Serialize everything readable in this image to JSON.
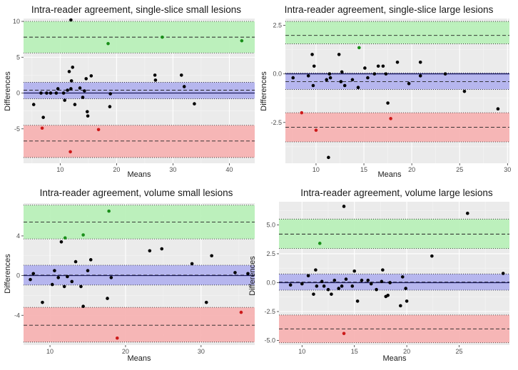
{
  "chart_data": [
    {
      "type": "scatter",
      "title": "Intra-reader agreement, single-slice small lesions",
      "xlabel": "Means",
      "ylabel": "Differences",
      "xlim": [
        3.5,
        44.5
      ],
      "ylim": [
        -9.8,
        10.4
      ],
      "xticks": [
        10,
        20,
        30,
        40
      ],
      "xtick_labels": [
        "10",
        "20",
        "30",
        "40"
      ],
      "yticks": [
        -5,
        0,
        5,
        10
      ],
      "ytick_labels": [
        "-5",
        "0",
        "5",
        "10"
      ],
      "bands": {
        "upper": {
          "low": 5.6,
          "high": 10.0,
          "center": 7.8,
          "color": "#b9f0b9"
        },
        "bias": {
          "low": -0.8,
          "high": 1.5,
          "center": 0.4,
          "color": "#b3b3ee"
        },
        "lower": {
          "low": -9.0,
          "high": -4.5,
          "center": -6.7,
          "color": "#f7b3b3"
        }
      },
      "zero_line": 0,
      "points": [
        {
          "x": 5.3,
          "y": -1.6,
          "c": "black"
        },
        {
          "x": 6.6,
          "y": 0.0,
          "c": "black"
        },
        {
          "x": 7.0,
          "y": -3.4,
          "c": "black"
        },
        {
          "x": 6.8,
          "y": -4.9,
          "c": "red"
        },
        {
          "x": 7.6,
          "y": 0.0,
          "c": "black"
        },
        {
          "x": 8.3,
          "y": 0.0,
          "c": "black"
        },
        {
          "x": 9.3,
          "y": 0.0,
          "c": "black"
        },
        {
          "x": 9.6,
          "y": 0.6,
          "c": "black"
        },
        {
          "x": 10.6,
          "y": 0.0,
          "c": "black"
        },
        {
          "x": 10.8,
          "y": -1.0,
          "c": "black"
        },
        {
          "x": 11.3,
          "y": 0.4,
          "c": "black"
        },
        {
          "x": 11.6,
          "y": 3.0,
          "c": "black"
        },
        {
          "x": 11.9,
          "y": 0.6,
          "c": "black"
        },
        {
          "x": 12.0,
          "y": 1.7,
          "c": "black"
        },
        {
          "x": 12.2,
          "y": 3.6,
          "c": "black"
        },
        {
          "x": 11.9,
          "y": 10.2,
          "c": "black"
        },
        {
          "x": 11.8,
          "y": -8.2,
          "c": "red"
        },
        {
          "x": 12.6,
          "y": -1.6,
          "c": "black"
        },
        {
          "x": 13.5,
          "y": 0.7,
          "c": "black"
        },
        {
          "x": 14.0,
          "y": -0.6,
          "c": "black"
        },
        {
          "x": 14.3,
          "y": 0.3,
          "c": "black"
        },
        {
          "x": 14.6,
          "y": 2.0,
          "c": "black"
        },
        {
          "x": 14.8,
          "y": -2.6,
          "c": "black"
        },
        {
          "x": 14.9,
          "y": -3.2,
          "c": "black"
        },
        {
          "x": 15.5,
          "y": 2.4,
          "c": "black"
        },
        {
          "x": 16.8,
          "y": -5.1,
          "c": "red"
        },
        {
          "x": 18.5,
          "y": 6.9,
          "c": "green"
        },
        {
          "x": 18.8,
          "y": -1.9,
          "c": "black"
        },
        {
          "x": 18.9,
          "y": -0.1,
          "c": "black"
        },
        {
          "x": 26.8,
          "y": 2.5,
          "c": "black"
        },
        {
          "x": 26.9,
          "y": 1.8,
          "c": "black"
        },
        {
          "x": 28.1,
          "y": 7.8,
          "c": "green"
        },
        {
          "x": 31.5,
          "y": 2.5,
          "c": "black"
        },
        {
          "x": 32.0,
          "y": 0.9,
          "c": "black"
        },
        {
          "x": 33.8,
          "y": -1.5,
          "c": "black"
        },
        {
          "x": 42.2,
          "y": 7.3,
          "c": "green"
        }
      ]
    },
    {
      "type": "scatter",
      "title": "Intra-reader agreement, single-slice large lesions",
      "xlabel": "Means",
      "ylabel": "Differences",
      "xlim": [
        6.8,
        30.2
      ],
      "ylim": [
        -4.6,
        2.85
      ],
      "xticks": [
        10,
        15,
        20,
        25,
        30
      ],
      "xtick_labels": [
        "10",
        "15",
        "20",
        "25",
        "30"
      ],
      "yticks": [
        -2.5,
        0.0,
        2.5
      ],
      "ytick_labels": [
        "-2.5",
        "0.0",
        "2.5"
      ],
      "bands": {
        "upper": {
          "low": 1.55,
          "high": 2.7,
          "center": 1.98,
          "color": "#b9f0b9"
        },
        "bias": {
          "low": -0.8,
          "high": 0.05,
          "center": -0.4,
          "color": "#b3b3ee"
        },
        "lower": {
          "low": -3.5,
          "high": -2.0,
          "center": -2.75,
          "color": "#f7b3b3"
        }
      },
      "zero_line": 0,
      "points": [
        {
          "x": 7.6,
          "y": -0.2,
          "c": "black"
        },
        {
          "x": 8.5,
          "y": -2.0,
          "c": "red"
        },
        {
          "x": 9.2,
          "y": -0.1,
          "c": "black"
        },
        {
          "x": 9.6,
          "y": 1.0,
          "c": "black"
        },
        {
          "x": 9.8,
          "y": 0.4,
          "c": "black"
        },
        {
          "x": 9.7,
          "y": -0.6,
          "c": "black"
        },
        {
          "x": 10.0,
          "y": -2.9,
          "c": "red"
        },
        {
          "x": 11.1,
          "y": -0.3,
          "c": "black"
        },
        {
          "x": 11.4,
          "y": 0.0,
          "c": "black"
        },
        {
          "x": 11.5,
          "y": -0.2,
          "c": "black"
        },
        {
          "x": 11.3,
          "y": -4.3,
          "c": "black"
        },
        {
          "x": 12.4,
          "y": 1.0,
          "c": "black"
        },
        {
          "x": 12.6,
          "y": -0.4,
          "c": "black"
        },
        {
          "x": 12.7,
          "y": 0.1,
          "c": "black"
        },
        {
          "x": 13.0,
          "y": -0.6,
          "c": "black"
        },
        {
          "x": 13.8,
          "y": -0.3,
          "c": "black"
        },
        {
          "x": 14.4,
          "y": -0.7,
          "c": "black"
        },
        {
          "x": 14.5,
          "y": 1.35,
          "c": "green"
        },
        {
          "x": 15.1,
          "y": 0.3,
          "c": "black"
        },
        {
          "x": 15.4,
          "y": -0.2,
          "c": "black"
        },
        {
          "x": 16.1,
          "y": 0.0,
          "c": "black"
        },
        {
          "x": 16.5,
          "y": 0.4,
          "c": "black"
        },
        {
          "x": 17.0,
          "y": 0.4,
          "c": "black"
        },
        {
          "x": 17.3,
          "y": 0.0,
          "c": "black"
        },
        {
          "x": 17.5,
          "y": -1.5,
          "c": "black"
        },
        {
          "x": 17.8,
          "y": -2.3,
          "c": "red"
        },
        {
          "x": 18.5,
          "y": 0.6,
          "c": "black"
        },
        {
          "x": 19.7,
          "y": -0.5,
          "c": "black"
        },
        {
          "x": 20.9,
          "y": 0.6,
          "c": "black"
        },
        {
          "x": 20.9,
          "y": -0.1,
          "c": "black"
        },
        {
          "x": 23.5,
          "y": 0.0,
          "c": "black"
        },
        {
          "x": 25.5,
          "y": -0.9,
          "c": "black"
        },
        {
          "x": 29.0,
          "y": -1.8,
          "c": "black"
        }
      ]
    },
    {
      "type": "scatter",
      "title": "Intra-reader agreement, volume small lesions",
      "xlabel": "Means",
      "ylabel": "Differences",
      "xlim": [
        6.5,
        37.1
      ],
      "ylim": [
        -7.0,
        7.3
      ],
      "xticks": [
        10,
        20,
        30
      ],
      "xtick_labels": [
        "10",
        "20",
        "30"
      ],
      "yticks": [
        -4,
        0,
        4
      ],
      "ytick_labels": [
        "-4",
        "0",
        "4"
      ],
      "bands": {
        "upper": {
          "low": 3.7,
          "high": 7.1,
          "center": 5.4,
          "color": "#b9f0b9"
        },
        "bias": {
          "low": -0.95,
          "high": 1.05,
          "center": 0.05,
          "color": "#b3b3ee"
        },
        "lower": {
          "low": -6.7,
          "high": -3.2,
          "center": -5.0,
          "color": "#f7b3b3"
        }
      },
      "zero_line": 0,
      "points": [
        {
          "x": 7.4,
          "y": -0.4,
          "c": "black"
        },
        {
          "x": 7.8,
          "y": 0.2,
          "c": "black"
        },
        {
          "x": 9.0,
          "y": -2.7,
          "c": "black"
        },
        {
          "x": 10.3,
          "y": -0.9,
          "c": "black"
        },
        {
          "x": 10.6,
          "y": 0.5,
          "c": "black"
        },
        {
          "x": 11.1,
          "y": -0.2,
          "c": "black"
        },
        {
          "x": 11.5,
          "y": 3.4,
          "c": "black"
        },
        {
          "x": 11.9,
          "y": -1.1,
          "c": "black"
        },
        {
          "x": 12.0,
          "y": 3.8,
          "c": "green"
        },
        {
          "x": 12.3,
          "y": -0.1,
          "c": "black"
        },
        {
          "x": 12.9,
          "y": -0.6,
          "c": "black"
        },
        {
          "x": 13.4,
          "y": 1.4,
          "c": "black"
        },
        {
          "x": 14.1,
          "y": -1.1,
          "c": "black"
        },
        {
          "x": 14.4,
          "y": -3.1,
          "c": "black"
        },
        {
          "x": 14.4,
          "y": 4.1,
          "c": "green"
        },
        {
          "x": 15.0,
          "y": 0.5,
          "c": "black"
        },
        {
          "x": 15.4,
          "y": 1.6,
          "c": "black"
        },
        {
          "x": 17.6,
          "y": -2.3,
          "c": "black"
        },
        {
          "x": 17.8,
          "y": 6.5,
          "c": "green"
        },
        {
          "x": 18.1,
          "y": -0.2,
          "c": "black"
        },
        {
          "x": 18.9,
          "y": -6.3,
          "c": "red"
        },
        {
          "x": 23.2,
          "y": 2.5,
          "c": "black"
        },
        {
          "x": 24.8,
          "y": 2.7,
          "c": "black"
        },
        {
          "x": 28.8,
          "y": 1.2,
          "c": "black"
        },
        {
          "x": 30.7,
          "y": -2.7,
          "c": "black"
        },
        {
          "x": 31.4,
          "y": 2.0,
          "c": "black"
        },
        {
          "x": 34.5,
          "y": 0.3,
          "c": "black"
        },
        {
          "x": 35.3,
          "y": -3.7,
          "c": "red"
        },
        {
          "x": 36.2,
          "y": 0.2,
          "c": "black"
        }
      ]
    },
    {
      "type": "scatter",
      "title": "Intra-reader agreement, volume large lesions",
      "xlabel": "Means",
      "ylabel": "Differences",
      "xlim": [
        7.8,
        29.8
      ],
      "ylim": [
        -5.4,
        7.0
      ],
      "xticks": [
        10,
        15,
        20,
        25
      ],
      "xtick_labels": [
        "10",
        "15",
        "20",
        "25"
      ],
      "yticks": [
        -5.0,
        -2.5,
        0.0,
        2.5,
        5.0
      ],
      "ytick_labels": [
        "-5.0",
        "-2.5",
        "0.0",
        "2.5",
        "5.0"
      ],
      "bands": {
        "upper": {
          "low": 2.95,
          "high": 5.5,
          "center": 4.2,
          "color": "#b9f0b9"
        },
        "bias": {
          "low": -0.65,
          "high": 0.75,
          "center": 0.05,
          "color": "#b3b3ee"
        },
        "lower": {
          "low": -5.2,
          "high": -2.8,
          "center": -4.0,
          "color": "#f7b3b3"
        }
      },
      "zero_line": 0,
      "points": [
        {
          "x": 8.9,
          "y": -0.2,
          "c": "black"
        },
        {
          "x": 10.0,
          "y": -0.1,
          "c": "black"
        },
        {
          "x": 10.6,
          "y": 0.6,
          "c": "black"
        },
        {
          "x": 11.1,
          "y": -1.0,
          "c": "black"
        },
        {
          "x": 11.3,
          "y": 1.1,
          "c": "black"
        },
        {
          "x": 11.4,
          "y": -0.3,
          "c": "black"
        },
        {
          "x": 11.7,
          "y": 3.4,
          "c": "green"
        },
        {
          "x": 11.9,
          "y": 0.1,
          "c": "black"
        },
        {
          "x": 12.1,
          "y": -0.3,
          "c": "black"
        },
        {
          "x": 12.5,
          "y": -0.6,
          "c": "black"
        },
        {
          "x": 12.8,
          "y": -1.0,
          "c": "black"
        },
        {
          "x": 13.1,
          "y": 0.2,
          "c": "black"
        },
        {
          "x": 13.5,
          "y": -0.5,
          "c": "black"
        },
        {
          "x": 13.8,
          "y": -0.3,
          "c": "black"
        },
        {
          "x": 14.0,
          "y": 6.6,
          "c": "black"
        },
        {
          "x": 14.0,
          "y": -4.4,
          "c": "red"
        },
        {
          "x": 14.2,
          "y": 0.3,
          "c": "black"
        },
        {
          "x": 14.8,
          "y": -0.3,
          "c": "black"
        },
        {
          "x": 15.0,
          "y": 1.0,
          "c": "black"
        },
        {
          "x": 15.3,
          "y": -1.6,
          "c": "black"
        },
        {
          "x": 15.7,
          "y": 0.2,
          "c": "black"
        },
        {
          "x": 16.3,
          "y": 0.2,
          "c": "black"
        },
        {
          "x": 16.6,
          "y": -0.1,
          "c": "black"
        },
        {
          "x": 17.1,
          "y": -0.6,
          "c": "black"
        },
        {
          "x": 17.6,
          "y": 0.1,
          "c": "black"
        },
        {
          "x": 17.7,
          "y": 1.1,
          "c": "black"
        },
        {
          "x": 18.0,
          "y": -1.2,
          "c": "black"
        },
        {
          "x": 18.2,
          "y": -1.1,
          "c": "black"
        },
        {
          "x": 18.4,
          "y": 0.0,
          "c": "black"
        },
        {
          "x": 19.4,
          "y": -2.0,
          "c": "black"
        },
        {
          "x": 19.6,
          "y": 0.5,
          "c": "black"
        },
        {
          "x": 19.9,
          "y": -0.5,
          "c": "black"
        },
        {
          "x": 20.0,
          "y": -1.6,
          "c": "black"
        },
        {
          "x": 22.4,
          "y": 2.3,
          "c": "black"
        },
        {
          "x": 25.8,
          "y": 6.0,
          "c": "black"
        },
        {
          "x": 29.2,
          "y": 0.8,
          "c": "black"
        }
      ]
    }
  ]
}
